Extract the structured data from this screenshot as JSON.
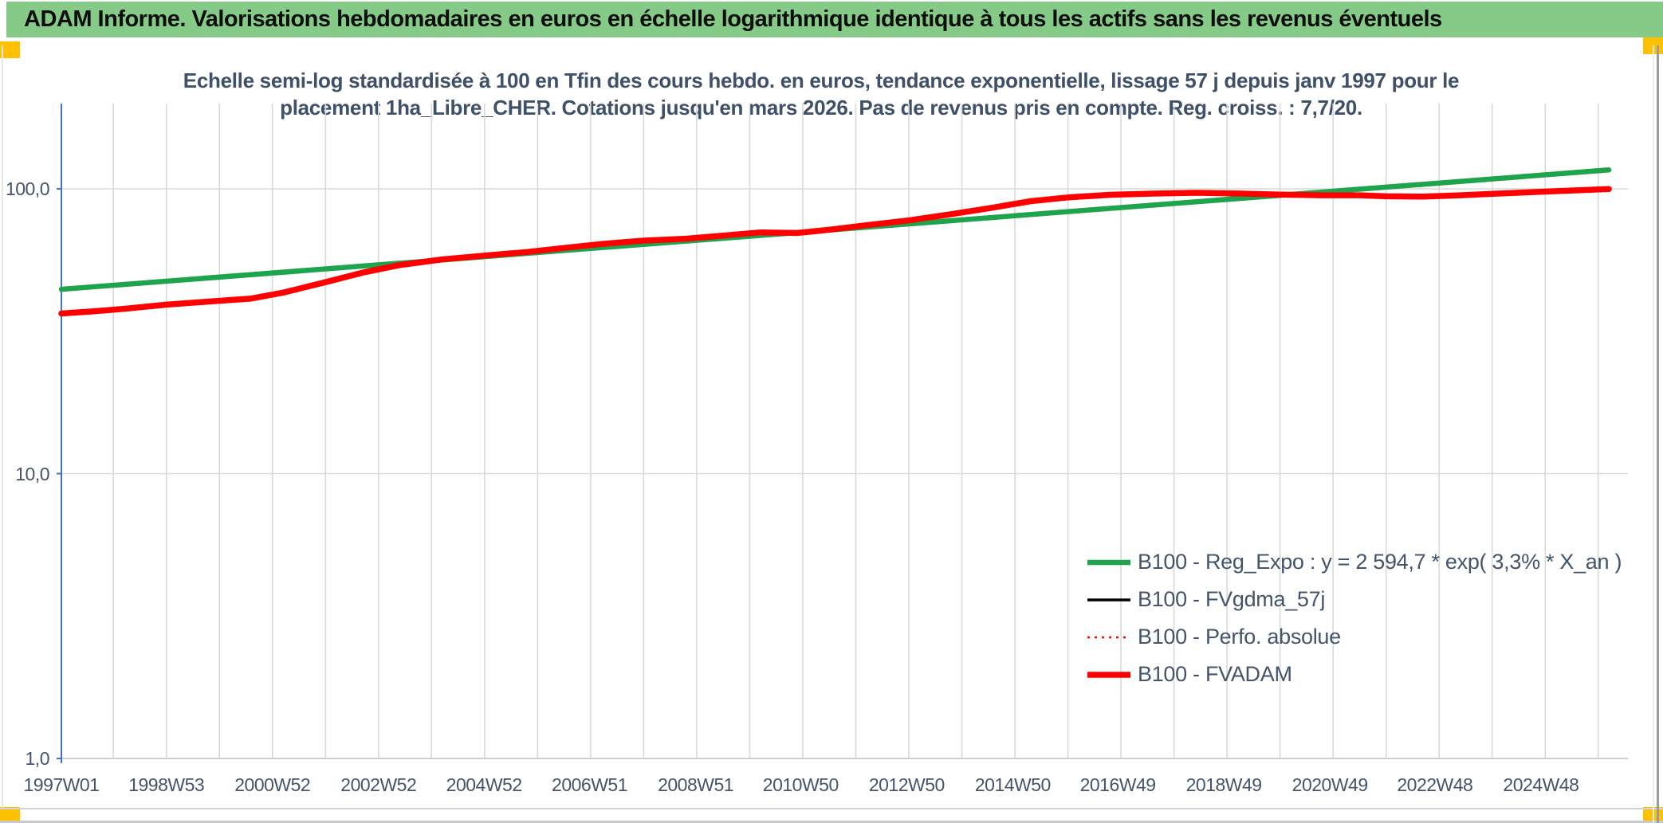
{
  "window": {
    "header": {
      "title": "ADAM Informe. Valorisations hebdomadaires en euros en échelle logarithmique identique à tous les actifs sans les revenus éventuels",
      "bg": "#85cb87"
    },
    "handle_color": "#ffc000"
  },
  "chart_data": {
    "type": "line",
    "title_lines": [
      "Echelle semi-log standardisée à 100 en Tfin des cours hebdo. en euros, tendance exponentielle, lissage 57 j depuis janv 1997 pour le",
      "placement 1ha_Libre_CHER. Cotations jusqu'en mars 2026. Pas de revenus pris en compte. Reg. croiss. : 7,7/20."
    ],
    "y_scale": "log",
    "ylim": [
      1,
      200
    ],
    "xlim": [
      1997.02,
      2026.56
    ],
    "y_ticks": [
      {
        "label": "100,0",
        "value": 100
      },
      {
        "label": "10,0",
        "value": 10
      },
      {
        "label": "1,0",
        "value": 1
      }
    ],
    "x_ticks": [
      {
        "label": "1997W01",
        "t": 1997.02
      },
      {
        "label": "1998W53",
        "t": 1999.0
      },
      {
        "label": "2000W52",
        "t": 2001.0
      },
      {
        "label": "2002W52",
        "t": 2003.0
      },
      {
        "label": "2004W52",
        "t": 2004.99
      },
      {
        "label": "2006W51",
        "t": 2006.98
      },
      {
        "label": "2008W51",
        "t": 2008.98
      },
      {
        "label": "2010W50",
        "t": 2010.96
      },
      {
        "label": "2012W50",
        "t": 2012.96
      },
      {
        "label": "2014W50",
        "t": 2014.96
      },
      {
        "label": "2016W49",
        "t": 2016.94
      },
      {
        "label": "2018W49",
        "t": 2018.94
      },
      {
        "label": "2020W49",
        "t": 2020.94
      },
      {
        "label": "2022W48",
        "t": 2022.92
      },
      {
        "label": "2024W48",
        "t": 2024.92
      }
    ],
    "grid": {
      "vertical_every_year": true,
      "color": "#d9d9d9"
    },
    "axis_color": "#4472c4",
    "series": [
      {
        "name": "B100 - Reg_Expo : y = 2 594,7 * exp( 3,3% *  X_an )",
        "color": "#1da44c",
        "width": 6.5,
        "dash": "",
        "points": [
          [
            1997.02,
            44.4
          ],
          [
            2026.2,
            116.5
          ]
        ]
      },
      {
        "name": "B100 - FVgdma_57j",
        "color": "#000000",
        "width": 3.5,
        "dash": "",
        "points_from": 3,
        "note": "coincides with FVADAM, hidden beneath it"
      },
      {
        "name": "B100 - Perfo. absolue",
        "color": "#ff0000",
        "width": 2.5,
        "dash": "3 6",
        "points_from": 3,
        "note": "coincides with FVADAM, hidden beneath it"
      },
      {
        "name": "B100 - FVADAM",
        "color": "#ff0000",
        "width": 7.5,
        "dash": "",
        "points": [
          [
            1997.02,
            36.5
          ],
          [
            1997.6,
            37.1
          ],
          [
            1998.2,
            37.9
          ],
          [
            1999.0,
            39.2
          ],
          [
            1999.8,
            40.2
          ],
          [
            2000.6,
            41.2
          ],
          [
            2001.2,
            43.2
          ],
          [
            2002.0,
            47.0
          ],
          [
            2002.7,
            50.8
          ],
          [
            2003.4,
            54.0
          ],
          [
            2004.2,
            56.5
          ],
          [
            2005.0,
            58.3
          ],
          [
            2005.8,
            60.0
          ],
          [
            2006.5,
            62.0
          ],
          [
            2007.2,
            64.0
          ],
          [
            2008.0,
            65.8
          ],
          [
            2008.8,
            66.8
          ],
          [
            2009.5,
            68.5
          ],
          [
            2010.2,
            70.3
          ],
          [
            2010.9,
            70.0
          ],
          [
            2011.5,
            71.8
          ],
          [
            2012.2,
            74.5
          ],
          [
            2013.0,
            77.5
          ],
          [
            2013.8,
            81.5
          ],
          [
            2014.6,
            86.0
          ],
          [
            2015.3,
            90.5
          ],
          [
            2016.0,
            93.3
          ],
          [
            2016.8,
            95.3
          ],
          [
            2017.6,
            96.2
          ],
          [
            2018.4,
            96.8
          ],
          [
            2019.2,
            96.3
          ],
          [
            2020.0,
            95.4
          ],
          [
            2020.8,
            94.9
          ],
          [
            2021.5,
            94.9
          ],
          [
            2022.0,
            94.1
          ],
          [
            2022.7,
            93.9
          ],
          [
            2023.4,
            94.9
          ],
          [
            2024.1,
            96.2
          ],
          [
            2024.9,
            97.6
          ],
          [
            2025.6,
            98.8
          ],
          [
            2026.2,
            99.8
          ]
        ]
      }
    ],
    "legend": {
      "position": "inside-right-lower",
      "entries": [
        "B100 - Reg_Expo : y = 2 594,7 * exp( 3,3% *  X_an )",
        "B100 - FVgdma_57j",
        "B100 - Perfo. absolue",
        "B100 - FVADAM"
      ]
    }
  }
}
